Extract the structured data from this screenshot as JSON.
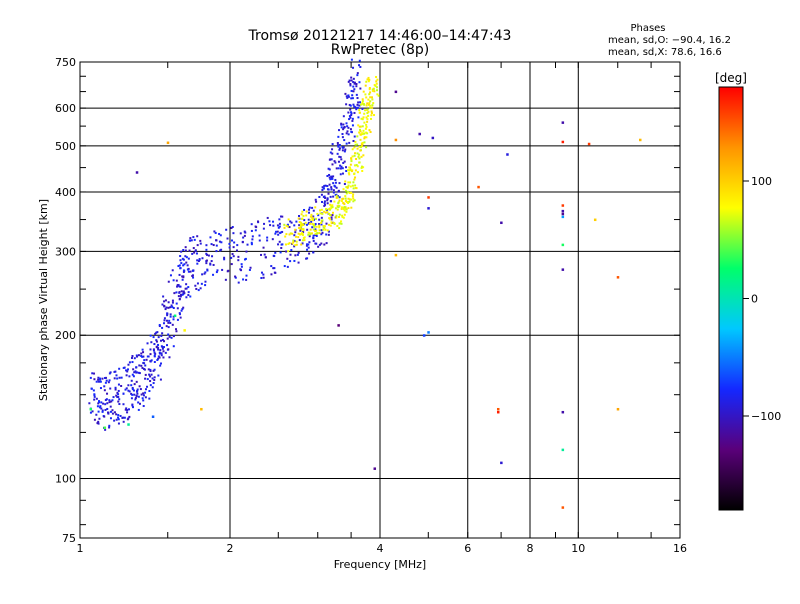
{
  "header": {
    "title_line1": "Tromsø 20121217 14:46:00–14:47:43",
    "title_line2": "RwPretec (8p)",
    "phases_heading": "Phases",
    "phases_o": "mean, sd,O: −90.4, 16.2",
    "phases_x": "mean, sd,X:  78.6, 16.6"
  },
  "colorbar": {
    "label": "[deg]",
    "ticks": [
      "100",
      "0",
      "−100"
    ],
    "range": [
      -180,
      180
    ],
    "colors": [
      "#000000",
      "#5a007a",
      "#1428ff",
      "#00c8ff",
      "#00ff6a",
      "#ffff00",
      "#ff9400",
      "#ff0000"
    ]
  },
  "chart_data": {
    "type": "scatter",
    "xlabel": "Frequency [MHz]",
    "ylabel": "Stationary phase Virtual Height [km]",
    "xscale": "log",
    "yscale": "log",
    "xlim": [
      1,
      16
    ],
    "ylim": [
      75,
      750
    ],
    "xticks": [
      "1",
      "2",
      "4",
      "6",
      "8",
      "10",
      "16"
    ],
    "yticks": [
      "75",
      "100",
      "200",
      "300",
      "400",
      "500",
      "600",
      "750"
    ],
    "grid_x": [
      2,
      4,
      6,
      8,
      10
    ],
    "grid_y": [
      100,
      200,
      300,
      400,
      500,
      600
    ],
    "traces": [
      {
        "mode": "O",
        "phase_mean": -90.4,
        "phase_sd": 16.2,
        "points": [
          [
            1.05,
            140
          ],
          [
            1.1,
            137
          ],
          [
            1.15,
            138
          ],
          [
            1.2,
            142
          ],
          [
            1.25,
            147
          ],
          [
            1.3,
            152
          ],
          [
            1.35,
            158
          ],
          [
            1.4,
            165
          ],
          [
            1.45,
            180
          ],
          [
            1.5,
            200
          ],
          [
            1.55,
            225
          ],
          [
            1.6,
            250
          ],
          [
            1.65,
            265
          ],
          [
            1.75,
            272
          ],
          [
            1.9,
            276
          ],
          [
            2.1,
            280
          ],
          [
            2.3,
            286
          ],
          [
            2.5,
            292
          ],
          [
            2.7,
            300
          ],
          [
            2.9,
            312
          ],
          [
            3.05,
            330
          ],
          [
            3.15,
            360
          ],
          [
            3.25,
            400
          ],
          [
            3.35,
            450
          ],
          [
            3.45,
            520
          ],
          [
            3.55,
            600
          ],
          [
            3.6,
            640
          ]
        ]
      },
      {
        "mode": "X",
        "phase_mean": 78.6,
        "phase_sd": 16.6,
        "points": [
          [
            2.6,
            310
          ],
          [
            2.8,
            330
          ],
          [
            3.0,
            340
          ],
          [
            3.2,
            345
          ],
          [
            3.4,
            360
          ],
          [
            3.5,
            400
          ],
          [
            3.6,
            460
          ],
          [
            3.7,
            530
          ],
          [
            3.8,
            600
          ],
          [
            3.9,
            650
          ]
        ]
      }
    ],
    "scatter_points": [
      [
        4.3,
        650,
        -120
      ],
      [
        4.3,
        515,
        130
      ],
      [
        4.8,
        530,
        -110
      ],
      [
        5.1,
        520,
        -100
      ],
      [
        7.2,
        480,
        -90
      ],
      [
        6.3,
        410,
        150
      ],
      [
        5.0,
        390,
        160
      ],
      [
        5.0,
        370,
        -95
      ],
      [
        4.3,
        295,
        110
      ],
      [
        4.9,
        200,
        -70
      ],
      [
        5.0,
        203,
        -50
      ],
      [
        7.0,
        345,
        -110
      ],
      [
        6.9,
        140,
        150
      ],
      [
        6.9,
        138,
        170
      ],
      [
        7.0,
        108,
        -95
      ],
      [
        9.3,
        560,
        -110
      ],
      [
        9.3,
        510,
        170
      ],
      [
        9.3,
        375,
        160
      ],
      [
        9.3,
        365,
        -110
      ],
      [
        9.3,
        360,
        -120
      ],
      [
        9.3,
        355,
        -40
      ],
      [
        9.3,
        310,
        30
      ],
      [
        9.3,
        275,
        -110
      ],
      [
        9.3,
        138,
        -110
      ],
      [
        9.3,
        115,
        10
      ],
      [
        9.3,
        87,
        150
      ],
      [
        10.5,
        505,
        160
      ],
      [
        10.8,
        350,
        100
      ],
      [
        12.0,
        265,
        150
      ],
      [
        12.0,
        140,
        120
      ],
      [
        13.3,
        515,
        110
      ],
      [
        3.9,
        105,
        -120
      ],
      [
        3.3,
        210,
        -130
      ],
      [
        1.4,
        135,
        -60
      ],
      [
        1.5,
        508,
        120
      ],
      [
        1.3,
        440,
        -110
      ],
      [
        1.25,
        130,
        10
      ],
      [
        1.62,
        205,
        80
      ],
      [
        1.55,
        220,
        20
      ],
      [
        1.75,
        140,
        110
      ],
      [
        1.05,
        140,
        30
      ],
      [
        1.12,
        128,
        40
      ]
    ],
    "phase_range": [
      -180,
      180
    ]
  }
}
